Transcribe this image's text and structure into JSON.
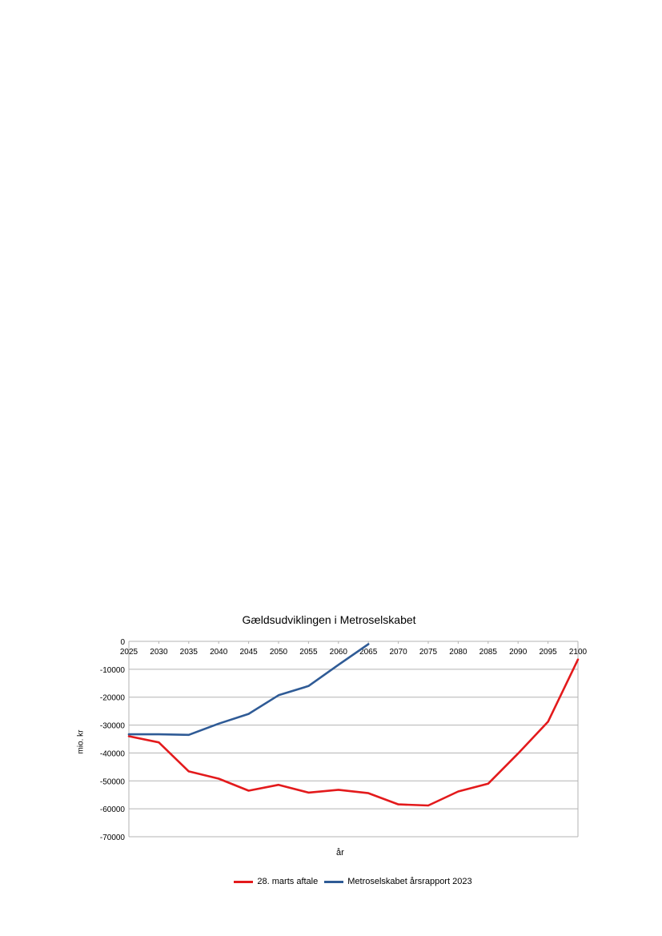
{
  "chart_data": {
    "type": "line",
    "title": "Gældsudviklingen i Metroselskabet",
    "xlabel": "år",
    "ylabel": "mio. kr",
    "x": [
      2025,
      2030,
      2035,
      2040,
      2045,
      2050,
      2055,
      2060,
      2065,
      2070,
      2075,
      2080,
      2085,
      2090,
      2095,
      2100
    ],
    "ylim": [
      -70000,
      0
    ],
    "yticks": [
      0,
      -10000,
      -20000,
      -30000,
      -40000,
      -50000,
      -60000,
      -70000
    ],
    "grid": true,
    "legend_position": "bottom",
    "series": [
      {
        "name": "28. marts aftale",
        "color": "#e31a1c",
        "values": [
          -34000,
          -36200,
          -46600,
          -49200,
          -53500,
          -51400,
          -54200,
          -53200,
          -54400,
          -58400,
          -58800,
          -53800,
          -51000,
          -40200,
          -28800,
          -6500
        ]
      },
      {
        "name": "Metroselskabet årsrapport 2023",
        "color": "#2f5b96",
        "values": [
          -33300,
          -33300,
          -33500,
          -29500,
          -26000,
          -19300,
          -16000,
          -8400,
          -1000,
          null,
          null,
          null,
          null,
          null,
          null,
          null
        ]
      }
    ]
  }
}
